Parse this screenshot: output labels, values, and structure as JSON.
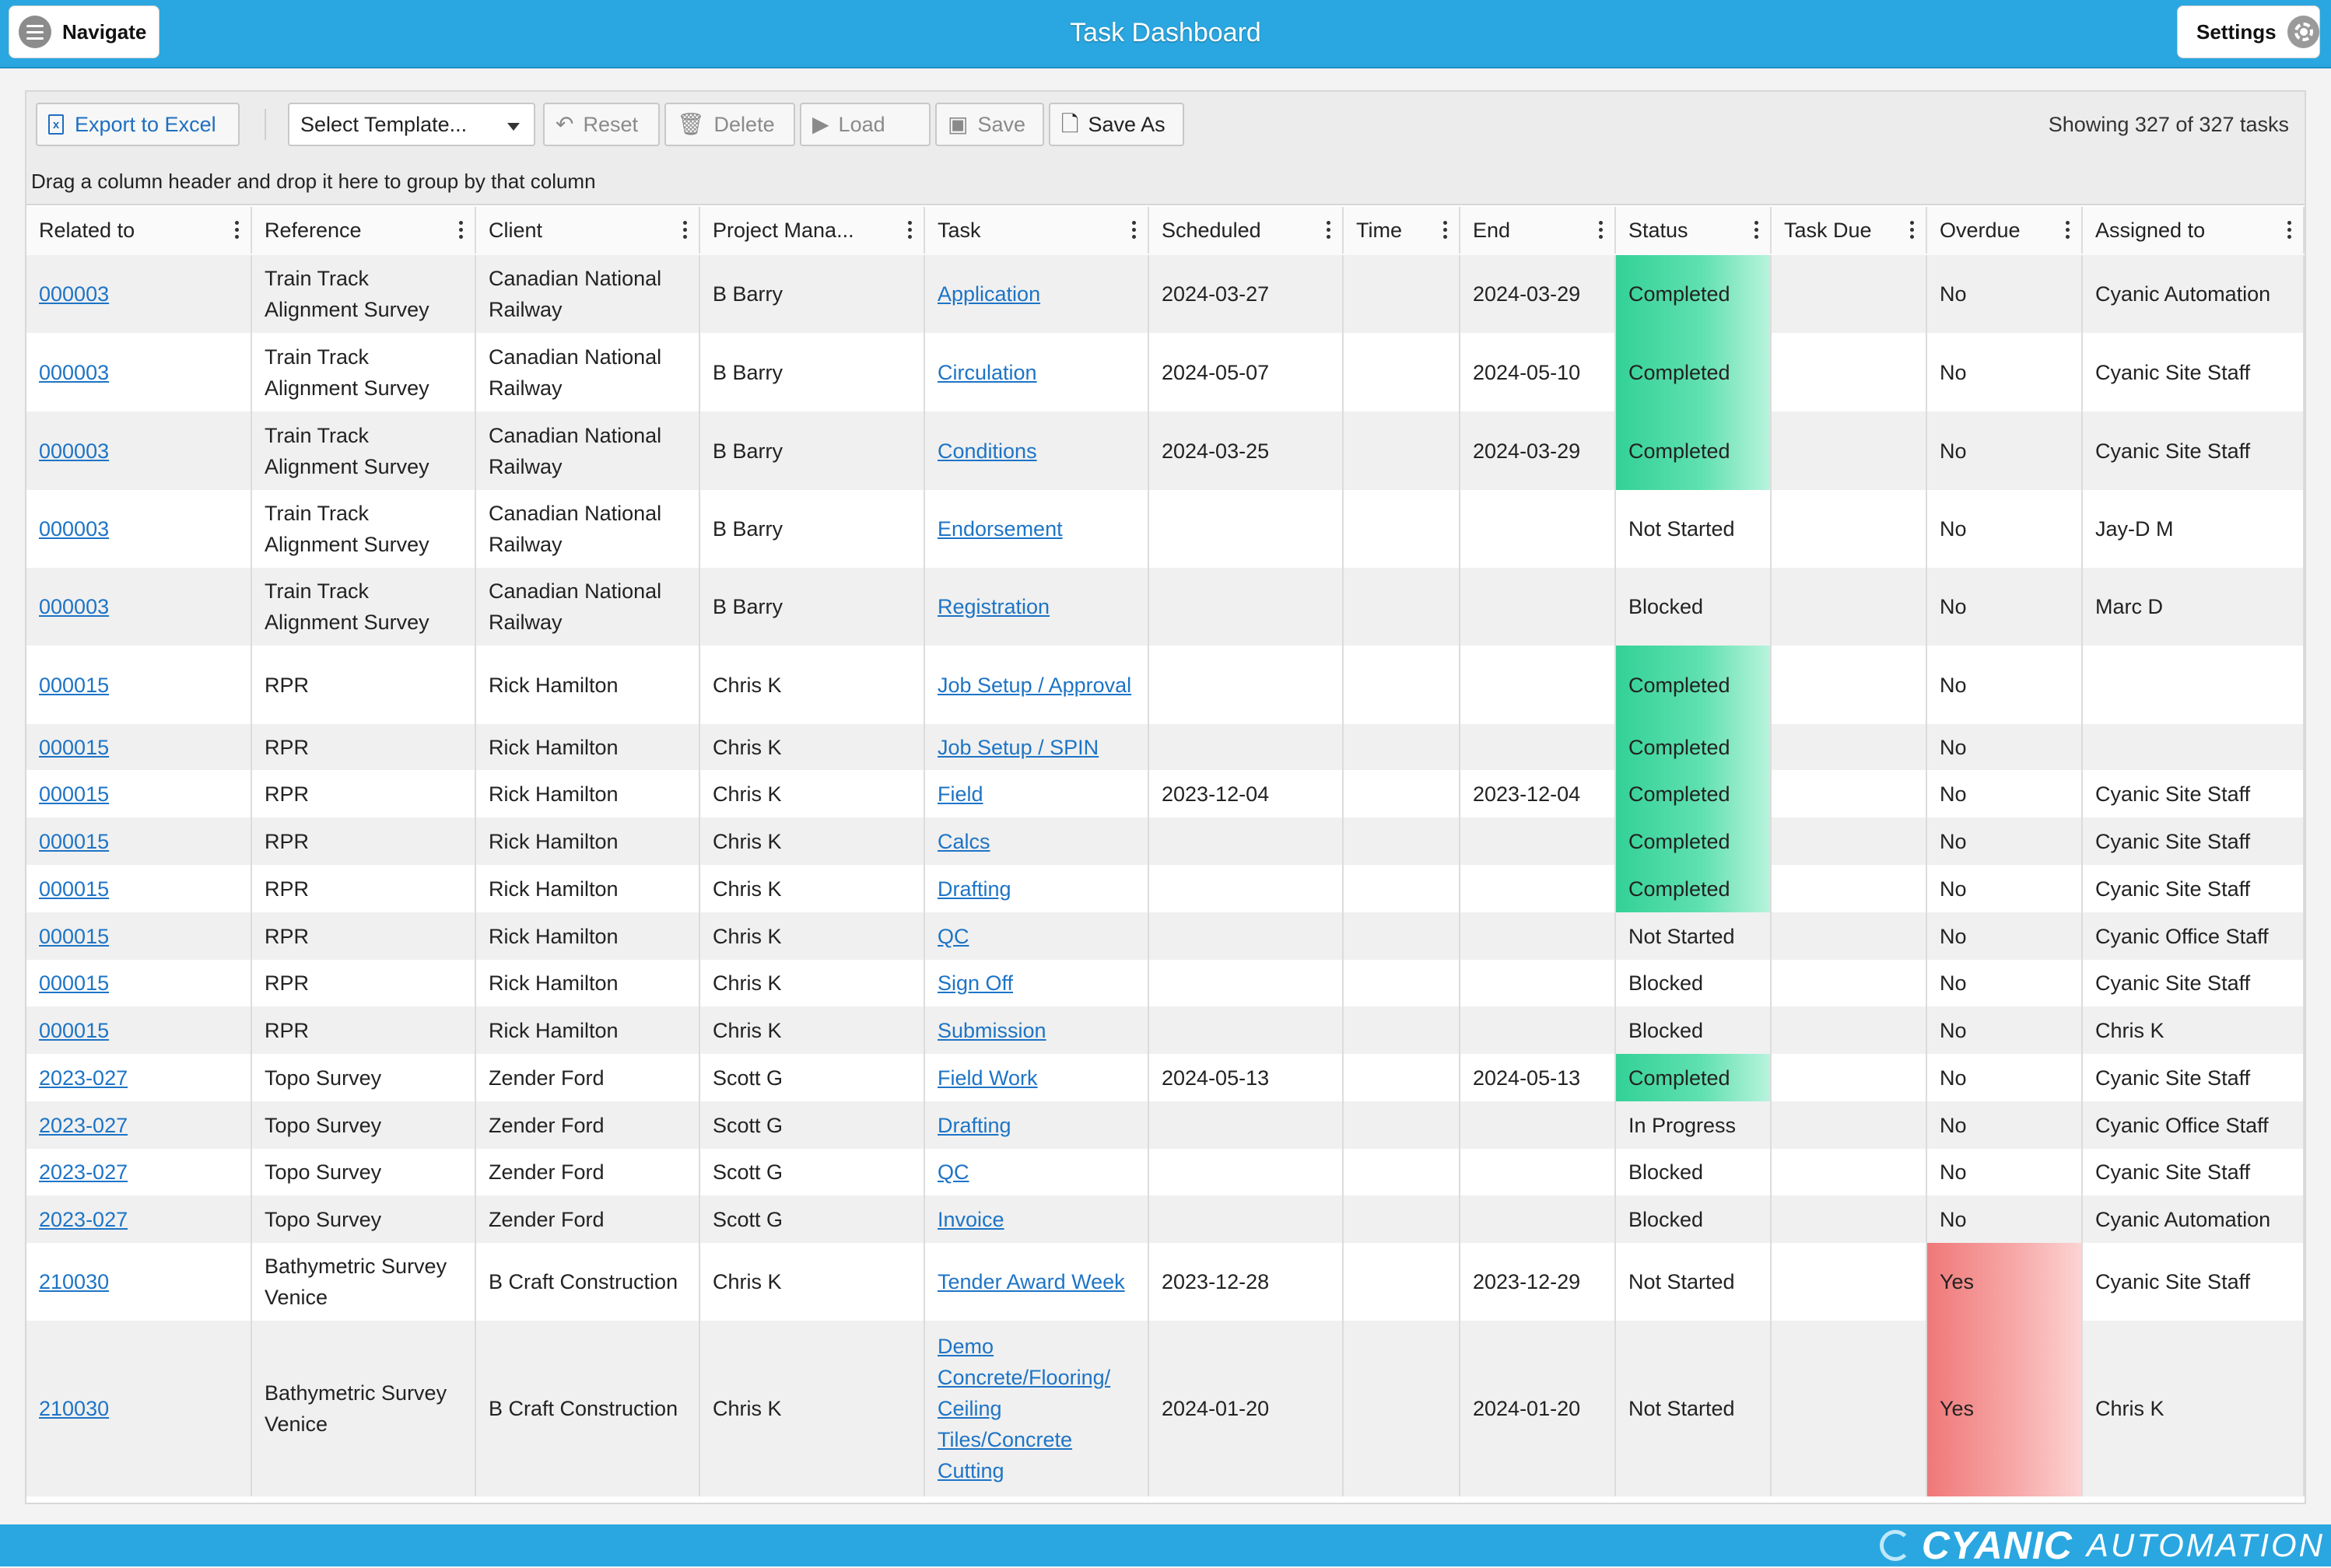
{
  "app": {
    "title": "Task Dashboard",
    "navigate_label": "Navigate",
    "settings_label": "Settings"
  },
  "toolbar": {
    "export_label": "Export to Excel",
    "template_placeholder": "Select Template...",
    "reset_label": "Reset",
    "delete_label": "Delete",
    "load_label": "Load",
    "save_label": "Save",
    "save_as_label": "Save As",
    "showing_text": "Showing 327 of 327 tasks"
  },
  "group_hint": "Drag a column header and drop it here to group by that column",
  "columns": [
    "Related to",
    "Reference",
    "Client",
    "Project Mana...",
    "Task",
    "Scheduled",
    "Time",
    "End",
    "Status",
    "Task Due",
    "Overdue",
    "Assigned to"
  ],
  "rows": [
    {
      "related": "000003",
      "reference": "Train Track Alignment Survey",
      "client": "Canadian National Railway",
      "pm": "B Barry",
      "task": "Application",
      "scheduled": "2024-03-27",
      "time": "",
      "end": "2024-03-29",
      "status": "Completed",
      "due": "",
      "overdue": "No",
      "assigned": "Cyanic Automation"
    },
    {
      "related": "000003",
      "reference": "Train Track Alignment Survey",
      "client": "Canadian National Railway",
      "pm": "B Barry",
      "task": "Circulation",
      "scheduled": "2024-05-07",
      "time": "",
      "end": "2024-05-10",
      "status": "Completed",
      "due": "",
      "overdue": "No",
      "assigned": "Cyanic Site Staff"
    },
    {
      "related": "000003",
      "reference": "Train Track Alignment Survey",
      "client": "Canadian National Railway",
      "pm": "B Barry",
      "task": "Conditions",
      "scheduled": "2024-03-25",
      "time": "",
      "end": "2024-03-29",
      "status": "Completed",
      "due": "",
      "overdue": "No",
      "assigned": "Cyanic Site Staff"
    },
    {
      "related": "000003",
      "reference": "Train Track Alignment Survey",
      "client": "Canadian National Railway",
      "pm": "B Barry",
      "task": "Endorsement",
      "scheduled": "",
      "time": "",
      "end": "",
      "status": "Not Started",
      "due": "",
      "overdue": "No",
      "assigned": "Jay-D M"
    },
    {
      "related": "000003",
      "reference": "Train Track Alignment Survey",
      "client": "Canadian National Railway",
      "pm": "B Barry",
      "task": "Registration",
      "scheduled": "",
      "time": "",
      "end": "",
      "status": "Blocked",
      "due": "",
      "overdue": "No",
      "assigned": "Marc D"
    },
    {
      "related": "000015",
      "reference": "RPR",
      "client": "Rick Hamilton",
      "pm": "Chris K",
      "task": "Job Setup / Approval",
      "scheduled": "",
      "time": "",
      "end": "",
      "status": "Completed",
      "due": "",
      "overdue": "No",
      "assigned": ""
    },
    {
      "related": "000015",
      "reference": "RPR",
      "client": "Rick Hamilton",
      "pm": "Chris K",
      "task": "Job Setup / SPIN",
      "scheduled": "",
      "time": "",
      "end": "",
      "status": "Completed",
      "due": "",
      "overdue": "No",
      "assigned": ""
    },
    {
      "related": "000015",
      "reference": "RPR",
      "client": "Rick Hamilton",
      "pm": "Chris K",
      "task": "Field",
      "scheduled": "2023-12-04",
      "time": "",
      "end": "2023-12-04",
      "status": "Completed",
      "due": "",
      "overdue": "No",
      "assigned": "Cyanic Site Staff"
    },
    {
      "related": "000015",
      "reference": "RPR",
      "client": "Rick Hamilton",
      "pm": "Chris K",
      "task": "Calcs",
      "scheduled": "",
      "time": "",
      "end": "",
      "status": "Completed",
      "due": "",
      "overdue": "No",
      "assigned": "Cyanic Site Staff"
    },
    {
      "related": "000015",
      "reference": "RPR",
      "client": "Rick Hamilton",
      "pm": "Chris K",
      "task": "Drafting",
      "scheduled": "",
      "time": "",
      "end": "",
      "status": "Completed",
      "due": "",
      "overdue": "No",
      "assigned": "Cyanic Site Staff"
    },
    {
      "related": "000015",
      "reference": "RPR",
      "client": "Rick Hamilton",
      "pm": "Chris K",
      "task": "QC",
      "scheduled": "",
      "time": "",
      "end": "",
      "status": "Not Started",
      "due": "",
      "overdue": "No",
      "assigned": "Cyanic Office Staff"
    },
    {
      "related": "000015",
      "reference": "RPR",
      "client": "Rick Hamilton",
      "pm": "Chris K",
      "task": "Sign Off",
      "scheduled": "",
      "time": "",
      "end": "",
      "status": "Blocked",
      "due": "",
      "overdue": "No",
      "assigned": "Cyanic Site Staff"
    },
    {
      "related": "000015",
      "reference": "RPR",
      "client": "Rick Hamilton",
      "pm": "Chris K",
      "task": "Submission",
      "scheduled": "",
      "time": "",
      "end": "",
      "status": "Blocked",
      "due": "",
      "overdue": "No",
      "assigned": "Chris K"
    },
    {
      "related": "2023-027",
      "reference": "Topo Survey",
      "client": "Zender Ford",
      "pm": "Scott G",
      "task": "Field Work",
      "scheduled": "2024-05-13",
      "time": "",
      "end": "2024-05-13",
      "status": "Completed",
      "due": "",
      "overdue": "No",
      "assigned": "Cyanic Site Staff"
    },
    {
      "related": "2023-027",
      "reference": "Topo Survey",
      "client": "Zender Ford",
      "pm": "Scott G",
      "task": "Drafting",
      "scheduled": "",
      "time": "",
      "end": "",
      "status": "In Progress",
      "due": "",
      "overdue": "No",
      "assigned": "Cyanic Office Staff"
    },
    {
      "related": "2023-027",
      "reference": "Topo Survey",
      "client": "Zender Ford",
      "pm": "Scott G",
      "task": "QC",
      "scheduled": "",
      "time": "",
      "end": "",
      "status": "Blocked",
      "due": "",
      "overdue": "No",
      "assigned": "Cyanic Site Staff"
    },
    {
      "related": "2023-027",
      "reference": "Topo Survey",
      "client": "Zender Ford",
      "pm": "Scott G",
      "task": "Invoice",
      "scheduled": "",
      "time": "",
      "end": "",
      "status": "Blocked",
      "due": "",
      "overdue": "No",
      "assigned": "Cyanic Automation"
    },
    {
      "related": "210030",
      "reference": "Bathymetric Survey Venice",
      "client": "B Craft Construction",
      "pm": "Chris K",
      "task": "Tender Award Week",
      "scheduled": "2023-12-28",
      "time": "",
      "end": "2023-12-29",
      "status": "Not Started",
      "due": "",
      "overdue": "Yes",
      "assigned": "Cyanic Site Staff"
    },
    {
      "related": "210030",
      "reference": "Bathymetric Survey Venice",
      "client": "B Craft Construction",
      "pm": "Chris K",
      "task": "Demo Concrete/Flooring/ Ceiling Tiles/Concrete Cutting",
      "scheduled": "2024-01-20",
      "time": "",
      "end": "2024-01-20",
      "status": "Not Started",
      "due": "",
      "overdue": "Yes",
      "assigned": "Chris K"
    }
  ],
  "footer": {
    "logo_primary": "CYANIC",
    "logo_secondary": "AUTOMATION"
  },
  "colors": {
    "brand": "#2aa7e0",
    "completed": "#33d197",
    "overdue": "#f07878",
    "link": "#1d74c6"
  }
}
